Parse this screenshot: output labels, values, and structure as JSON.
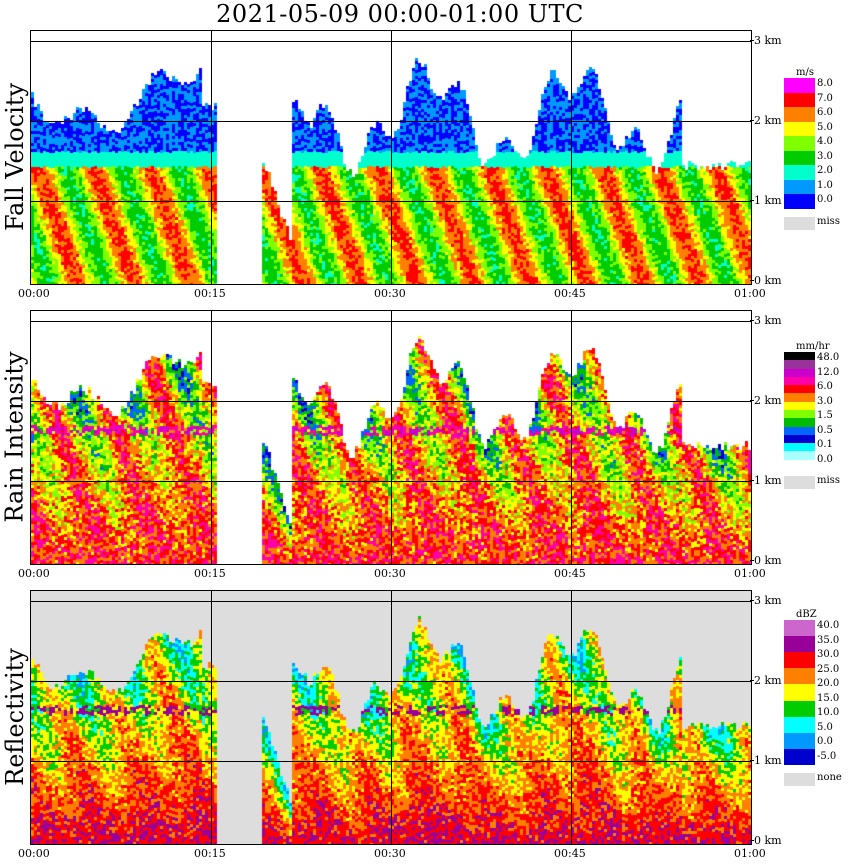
{
  "title": "2021-05-09   00:00-01:00 UTC",
  "x_ticks": [
    "00:00",
    "00:15",
    "00:30",
    "00:45",
    "01:00"
  ],
  "km_labels": [
    "3 km",
    "2 km",
    "1 km",
    "0 km"
  ],
  "chart_data": [
    {
      "type": "heatmap",
      "ylabel": "Fall Velocity",
      "unit": "m/s",
      "x_range": [
        "00:00",
        "01:00"
      ],
      "y_range_km": [
        0,
        3.1
      ],
      "legend": {
        "levels": [
          "8.0",
          "7.0",
          "6.0",
          "5.0",
          "4.0",
          "3.0",
          "2.0",
          "1.0",
          "0.0"
        ],
        "colors": [
          "#ff00ff",
          "#ff0000",
          "#ff7f00",
          "#ffff00",
          "#7fff00",
          "#00cc00",
          "#00ffcc",
          "#0099ff",
          "#0000ff"
        ],
        "missing_label": "miss",
        "missing_color": "#dddddd"
      }
    },
    {
      "type": "heatmap",
      "ylabel": "Rain Intensity",
      "unit": "mm/hr",
      "x_range": [
        "00:00",
        "01:00"
      ],
      "y_range_km": [
        0,
        3.1
      ],
      "legend": {
        "levels": [
          "48.0",
          "12.0",
          "6.0",
          "3.0",
          "1.5",
          "0.5",
          "0.1",
          "0.0"
        ],
        "colors": [
          "#000000",
          "#993399",
          "#cc00cc",
          "#ff00aa",
          "#ff0000",
          "#ff7f00",
          "#ffff00",
          "#7fff00",
          "#00bb00",
          "#0066ff",
          "#0000cc",
          "#00ffff",
          "#aaffff",
          "#ffffff"
        ],
        "missing_label": "miss",
        "missing_color": "#dddddd"
      }
    },
    {
      "type": "heatmap",
      "ylabel": "Reflectivity",
      "unit": "dBZ",
      "x_range": [
        "00:00",
        "01:00"
      ],
      "y_range_km": [
        0,
        3.1
      ],
      "legend": {
        "levels": [
          "40.0",
          "35.0",
          "30.0",
          "25.0",
          "20.0",
          "15.0",
          "10.0",
          "5.0",
          "0.0",
          "-5.0"
        ],
        "colors": [
          "#cc66cc",
          "#990099",
          "#ff0000",
          "#ff7f00",
          "#ffff00",
          "#00cc00",
          "#00ffff",
          "#0099ff",
          "#0000cc"
        ],
        "missing_label": "none",
        "missing_color": "#dddddd"
      }
    }
  ]
}
